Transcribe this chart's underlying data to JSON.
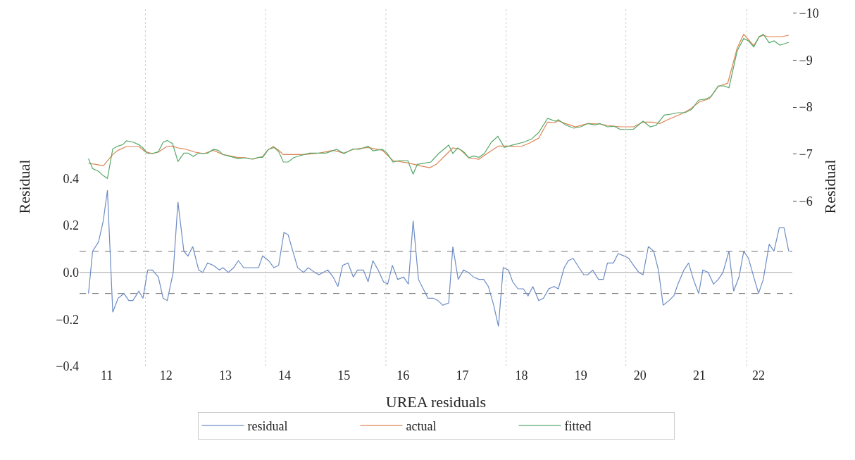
{
  "chart_data": {
    "type": "line",
    "xlabel": "UREA residuals",
    "ylabel": "Residual",
    "y2label": "Residual",
    "xlim": [
      10.54,
      22.57
    ],
    "xticks": [
      11,
      12,
      13,
      14,
      15,
      16,
      17,
      18,
      19,
      20,
      21,
      22
    ],
    "ylim": [
      -0.4,
      1.13
    ],
    "yticks": [
      {
        "value": 0.4,
        "label": "0.4"
      },
      {
        "value": 0.2,
        "label": "0.2"
      },
      {
        "value": 0,
        "label": "0.0"
      },
      {
        "value": -0.2,
        "label": "−0.2"
      },
      {
        "value": -0.4,
        "label": "−0.4"
      }
    ],
    "y2lim": [
      -2.48,
      -10.13
    ],
    "y2ticks": [
      {
        "value": -10,
        "label": "−10"
      },
      {
        "value": -9,
        "label": "−9"
      },
      {
        "value": -8,
        "label": "−8"
      },
      {
        "value": -7,
        "label": "−7"
      },
      {
        "value": -6,
        "label": "−6"
      }
    ],
    "grid": false,
    "legend": "bottom",
    "marker": "none",
    "line_style": "solid",
    "ref_lines": [
      {
        "axis": "y",
        "value": 0,
        "color": "#b0b0b0",
        "line_style": "solid"
      },
      {
        "axis": "y",
        "value": 0.09,
        "color": "#707070",
        "line_style": "dashed"
      },
      {
        "axis": "y",
        "value": -0.09,
        "color": "#707070",
        "line_style": "dashed"
      },
      {
        "axis": "x",
        "value": 11.65,
        "color": "#d0d0d0",
        "line_style": "dotted"
      },
      {
        "axis": "x",
        "value": 13.68,
        "color": "#d0d0d0",
        "line_style": "dotted"
      },
      {
        "axis": "x",
        "value": 15.71,
        "color": "#d0d0d0",
        "line_style": "dotted"
      },
      {
        "axis": "x",
        "value": 17.74,
        "color": "#d0d0d0",
        "line_style": "dotted"
      },
      {
        "axis": "x",
        "value": 19.76,
        "color": "#d0d0d0",
        "line_style": "dotted"
      },
      {
        "axis": "x",
        "value": 21.8,
        "color": "#d0d0d0",
        "line_style": "dotted"
      }
    ],
    "series": [
      {
        "name": "residual",
        "color": "#6d8cc4",
        "x": [
          10.69,
          10.76,
          10.86,
          10.94,
          11.01,
          11.1,
          11.19,
          11.29,
          11.37,
          11.44,
          11.54,
          11.61,
          11.69,
          11.77,
          11.87,
          11.95,
          12.02,
          12.12,
          12.2,
          12.3,
          12.37,
          12.45,
          12.55,
          12.62,
          12.7,
          12.8,
          12.9,
          12.96,
          13.05,
          13.14,
          13.22,
          13.31,
          13.45,
          13.56,
          13.63,
          13.73,
          13.82,
          13.9,
          13.99,
          14.06,
          14.14,
          14.22,
          14.32,
          14.4,
          14.51,
          14.58,
          14.73,
          14.82,
          14.9,
          14.98,
          15.07,
          15.16,
          15.23,
          15.33,
          15.41,
          15.49,
          15.58,
          15.67,
          15.74,
          15.82,
          15.91,
          16.01,
          16.09,
          16.17,
          16.26,
          16.34,
          16.42,
          16.51,
          16.59,
          16.67,
          16.77,
          16.84,
          16.93,
          17.02,
          17.1,
          17.19,
          17.28,
          17.36,
          17.44,
          17.53,
          17.61,
          17.69,
          17.78,
          17.85,
          17.94,
          18.03,
          18.11,
          18.19,
          18.29,
          18.37,
          18.46,
          18.55,
          18.62,
          18.72,
          18.79,
          18.87,
          18.97,
          19.05,
          19.12,
          19.2,
          19.3,
          19.38,
          19.45,
          19.55,
          19.63,
          19.73,
          19.81,
          19.89,
          19.98,
          20.05,
          20.14,
          20.23,
          20.31,
          20.39,
          20.49,
          20.57,
          20.64,
          20.74,
          20.82,
          20.9,
          20.99,
          21.06,
          21.15,
          21.24,
          21.32,
          21.4,
          21.5,
          21.58,
          21.67,
          21.75,
          21.83,
          21.92,
          22.0,
          22.08,
          22.18,
          22.26,
          22.35,
          22.43,
          22.51
        ],
        "values": [
          -0.09,
          0.09,
          0.13,
          0.22,
          0.35,
          -0.17,
          -0.11,
          -0.09,
          -0.12,
          -0.12,
          -0.08,
          -0.11,
          0.01,
          0.01,
          -0.02,
          -0.11,
          -0.12,
          0.0,
          0.3,
          0.09,
          0.07,
          0.11,
          0.01,
          0.0,
          0.04,
          0.03,
          0.01,
          0.02,
          0.0,
          0.02,
          0.05,
          0.02,
          0.02,
          0.02,
          0.07,
          0.05,
          0.02,
          0.03,
          0.17,
          0.16,
          0.09,
          0.02,
          0.0,
          0.02,
          0.0,
          -0.01,
          0.01,
          -0.02,
          -0.06,
          0.03,
          0.04,
          -0.02,
          0.01,
          0.01,
          -0.04,
          0.05,
          0.01,
          -0.04,
          -0.05,
          0.03,
          -0.03,
          -0.02,
          -0.05,
          0.22,
          -0.03,
          -0.07,
          -0.11,
          -0.11,
          -0.12,
          -0.14,
          -0.13,
          0.11,
          -0.03,
          0.01,
          0.0,
          -0.02,
          -0.03,
          -0.03,
          -0.06,
          -0.14,
          -0.23,
          0.02,
          0.01,
          -0.04,
          -0.07,
          -0.07,
          -0.1,
          -0.06,
          -0.12,
          -0.11,
          -0.07,
          -0.06,
          -0.07,
          0.02,
          0.05,
          0.06,
          0.02,
          -0.01,
          -0.01,
          0.01,
          -0.03,
          -0.03,
          0.04,
          0.04,
          0.08,
          0.07,
          0.06,
          0.03,
          0.0,
          -0.01,
          0.11,
          0.09,
          0.01,
          -0.14,
          -0.12,
          -0.1,
          -0.05,
          0.01,
          0.04,
          -0.03,
          -0.09,
          0.01,
          0.0,
          -0.05,
          -0.03,
          0.0,
          0.09,
          -0.08,
          -0.02,
          0.09,
          0.06,
          -0.02,
          -0.09,
          -0.03,
          0.12,
          0.09,
          0.19,
          0.19,
          0.09
        ]
      },
      {
        "name": "actual",
        "color": "#dd8452",
        "axis": "y2",
        "x": [
          10.69,
          10.82,
          10.94,
          11.1,
          11.19,
          11.33,
          11.54,
          11.65,
          11.77,
          11.87,
          12.01,
          12.11,
          12.2,
          12.34,
          12.49,
          12.64,
          12.8,
          12.96,
          13.2,
          13.35,
          13.47,
          13.63,
          13.71,
          13.81,
          13.9,
          13.98,
          14.19,
          14.33,
          14.58,
          14.82,
          15.0,
          15.16,
          15.41,
          15.65,
          15.83,
          16.09,
          16.29,
          16.45,
          16.56,
          16.72,
          16.84,
          16.96,
          17.11,
          17.28,
          17.43,
          17.61,
          17.75,
          17.99,
          18.13,
          18.29,
          18.44,
          18.57,
          18.62,
          18.74,
          18.91,
          19.12,
          19.32,
          19.45,
          19.66,
          19.89,
          20.05,
          20.21,
          20.33,
          20.52,
          20.69,
          20.84,
          21.0,
          21.17,
          21.32,
          21.48,
          21.64,
          21.75,
          21.92,
          22.01,
          22.08,
          22.15,
          22.39,
          22.51
        ],
        "values": [
          -6.8,
          -6.78,
          -6.75,
          -6.99,
          -7.08,
          -7.16,
          -7.16,
          -7.05,
          -7.01,
          -7.04,
          -7.16,
          -7.17,
          -7.13,
          -7.1,
          -7.04,
          -7.01,
          -7.08,
          -6.99,
          -6.93,
          -6.92,
          -6.89,
          -6.95,
          -7.08,
          -7.16,
          -7.08,
          -6.99,
          -6.99,
          -6.99,
          -7.02,
          -7.08,
          -7.02,
          -7.1,
          -7.14,
          -7.08,
          -6.86,
          -6.81,
          -6.75,
          -6.71,
          -6.78,
          -6.98,
          -7.13,
          -7.1,
          -6.92,
          -6.89,
          -7.02,
          -7.17,
          -7.17,
          -7.16,
          -7.23,
          -7.34,
          -7.68,
          -7.67,
          -7.71,
          -7.65,
          -7.58,
          -7.65,
          -7.64,
          -7.61,
          -7.58,
          -7.58,
          -7.68,
          -7.68,
          -7.65,
          -7.76,
          -7.85,
          -7.95,
          -8.11,
          -8.18,
          -8.44,
          -8.51,
          -9.26,
          -9.55,
          -9.31,
          -9.49,
          -9.53,
          -9.5,
          -9.5,
          -9.53
        ]
      },
      {
        "name": "fitted",
        "color": "#55a868",
        "axis": "y2",
        "x": [
          10.69,
          10.76,
          10.86,
          10.94,
          11.01,
          11.1,
          11.19,
          11.27,
          11.33,
          11.45,
          11.54,
          11.61,
          11.68,
          11.77,
          11.87,
          11.95,
          12.02,
          12.11,
          12.2,
          12.3,
          12.37,
          12.46,
          12.55,
          12.62,
          12.7,
          12.8,
          12.88,
          12.96,
          13.05,
          13.14,
          13.22,
          13.32,
          13.45,
          13.56,
          13.63,
          13.73,
          13.82,
          13.9,
          13.98,
          14.06,
          14.15,
          14.22,
          14.33,
          14.42,
          14.58,
          14.7,
          14.88,
          15.0,
          15.16,
          15.26,
          15.41,
          15.49,
          15.65,
          15.73,
          15.83,
          15.93,
          16.08,
          16.17,
          16.24,
          16.47,
          16.6,
          16.77,
          16.84,
          16.92,
          17.02,
          17.11,
          17.19,
          17.28,
          17.37,
          17.49,
          17.6,
          17.71,
          17.87,
          18.03,
          18.17,
          18.29,
          18.44,
          18.57,
          18.62,
          18.74,
          18.88,
          19.0,
          19.12,
          19.24,
          19.32,
          19.45,
          19.56,
          19.66,
          19.75,
          19.89,
          20.05,
          20.17,
          20.27,
          20.41,
          20.52,
          20.64,
          20.76,
          20.87,
          20.99,
          21.11,
          21.2,
          21.32,
          21.42,
          21.5,
          21.64,
          21.75,
          21.83,
          21.92,
          22.01,
          22.08,
          22.18,
          22.26,
          22.36,
          22.44,
          22.51
        ],
        "values": [
          -6.9,
          -6.69,
          -6.63,
          -6.54,
          -6.48,
          -7.11,
          -7.17,
          -7.2,
          -7.28,
          -7.25,
          -7.2,
          -7.13,
          -7.02,
          -7.01,
          -7.05,
          -7.25,
          -7.29,
          -7.22,
          -6.84,
          -7.02,
          -7.02,
          -6.95,
          -7.02,
          -7.01,
          -7.02,
          -7.1,
          -7.08,
          -6.99,
          -6.96,
          -6.93,
          -6.9,
          -6.92,
          -6.89,
          -6.93,
          -6.93,
          -7.1,
          -7.14,
          -7.05,
          -6.83,
          -6.83,
          -6.92,
          -6.95,
          -6.99,
          -7.02,
          -7.02,
          -7.02,
          -7.1,
          -7.01,
          -7.11,
          -7.1,
          -7.17,
          -7.07,
          -7.1,
          -7.02,
          -6.83,
          -6.86,
          -6.86,
          -6.57,
          -6.78,
          -6.83,
          -7.01,
          -7.19,
          -7.01,
          -7.13,
          -7.05,
          -6.92,
          -6.96,
          -6.93,
          -7.01,
          -7.25,
          -7.38,
          -7.14,
          -7.2,
          -7.25,
          -7.32,
          -7.46,
          -7.76,
          -7.7,
          -7.73,
          -7.62,
          -7.55,
          -7.58,
          -7.65,
          -7.62,
          -7.65,
          -7.58,
          -7.59,
          -7.53,
          -7.52,
          -7.53,
          -7.7,
          -7.58,
          -7.61,
          -7.83,
          -7.85,
          -7.88,
          -7.88,
          -7.95,
          -8.15,
          -8.17,
          -8.23,
          -8.45,
          -8.45,
          -8.41,
          -9.2,
          -9.46,
          -9.41,
          -9.28,
          -9.5,
          -9.55,
          -9.37,
          -9.41,
          -9.32,
          -9.35,
          -9.38
        ]
      }
    ]
  }
}
